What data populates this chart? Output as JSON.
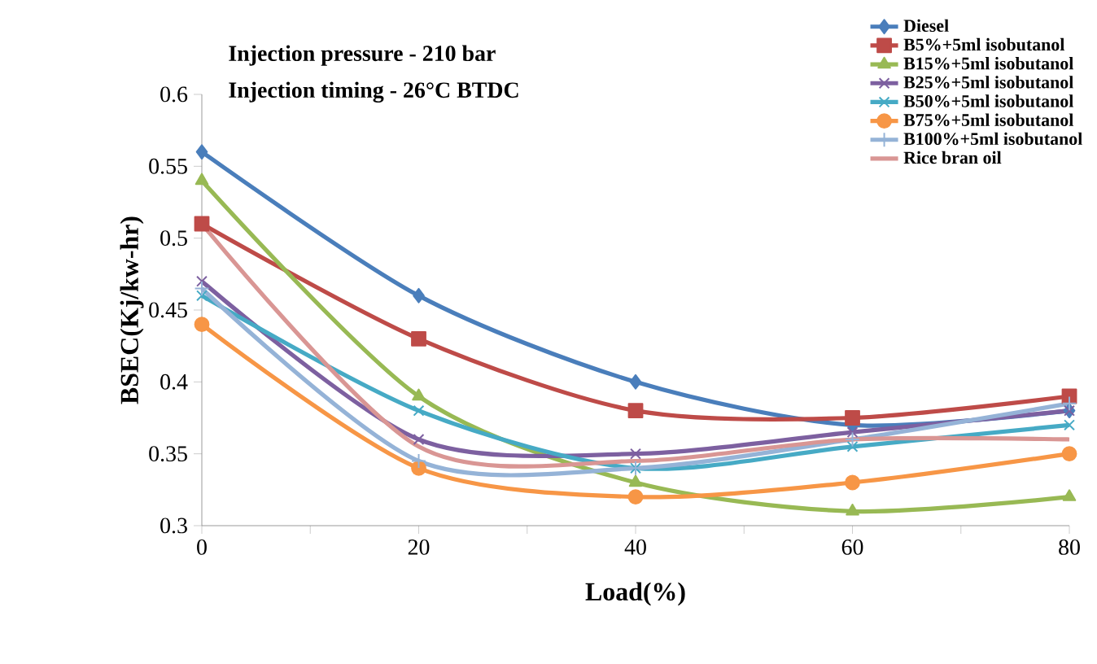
{
  "chart_data": {
    "type": "line",
    "xlabel": "Load(%)",
    "ylabel": "BSEC(Kj/kw-hr)",
    "annotations": [
      "Injection pressure - 210 bar",
      "Injection timing - 26°C BTDC"
    ],
    "x": [
      0,
      20,
      40,
      60,
      80
    ],
    "xlim": [
      0,
      80
    ],
    "xticks": [
      0,
      {
        "value": 10,
        "label": null
      },
      20,
      {
        "value": 30,
        "label": null
      },
      40,
      {
        "value": 50,
        "label": null
      },
      60,
      {
        "value": 70,
        "label": null
      },
      80
    ],
    "ylim": [
      0.3,
      0.6
    ],
    "yticks": [
      0.3,
      0.35,
      0.4,
      0.45,
      0.5,
      0.55,
      0.6
    ],
    "grid": false,
    "legend": "top right",
    "line_style": "solid",
    "series": [
      {
        "name": "Diesel",
        "color": "#4a7ebb",
        "marker": "diamond",
        "values": [
          0.56,
          0.46,
          0.4,
          0.37,
          0.38
        ]
      },
      {
        "name": "B5%+5ml isobutanol",
        "color": "#be4b48",
        "marker": "square",
        "values": [
          0.51,
          0.43,
          0.38,
          0.375,
          0.39
        ]
      },
      {
        "name": "B15%+5ml isobutanol",
        "color": "#98b954",
        "marker": "triangle",
        "values": [
          0.54,
          0.39,
          0.33,
          0.31,
          0.32
        ]
      },
      {
        "name": "B25%+5ml isobutanol",
        "color": "#7d60a0",
        "marker": "cross",
        "values": [
          0.47,
          0.36,
          0.35,
          0.365,
          0.38
        ]
      },
      {
        "name": "B50%+5ml isobutanol",
        "color": "#46aac5",
        "marker": "cross",
        "values": [
          0.46,
          0.38,
          0.34,
          0.355,
          0.37
        ]
      },
      {
        "name": "B75%+5ml isobutanol",
        "color": "#f79646",
        "marker": "circle",
        "values": [
          0.44,
          0.34,
          0.32,
          0.33,
          0.35
        ]
      },
      {
        "name": "B100%+5ml isobutanol",
        "color": "#95b3d7",
        "marker": "plus",
        "values": [
          0.465,
          0.345,
          0.34,
          0.36,
          0.385
        ]
      },
      {
        "name": "Rice bran oil",
        "color": "#d99694",
        "marker": "none",
        "values": [
          0.51,
          0.355,
          0.345,
          0.36,
          0.36
        ]
      }
    ]
  }
}
